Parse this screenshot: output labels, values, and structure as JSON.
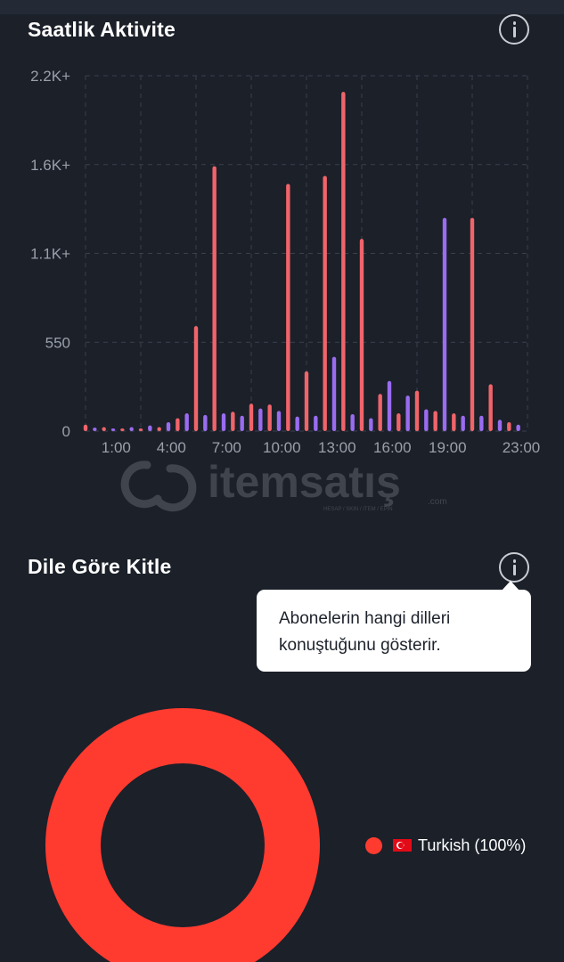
{
  "activity_section": {
    "title": "Saatlik Aktivite"
  },
  "language_section": {
    "title": "Dile Göre Kitle",
    "tooltip_text": "Abonelerin hangi dilleri konuştuğunu gösterir.",
    "legend_label": "Turkish (100%)"
  },
  "watermark": {
    "text": "itemsatış",
    "subtext": "HESAP / SKIN / ITEM / EPIN",
    "suffix": ".com"
  },
  "colors": {
    "red_series": "#f0646a",
    "purple_series": "#9a6cf0",
    "donut": "#ff3b30",
    "background": "#1b2029"
  },
  "chart_data": {
    "type": "bar",
    "y_tick_labels": [
      "0",
      "550",
      "1.1K+",
      "1.6K+",
      "2.2K+"
    ],
    "y_tick_values": [
      0,
      550,
      1100,
      1650,
      2200
    ],
    "ylim": [
      0,
      2200
    ],
    "x_tick_labels": [
      "1:00",
      "4:00",
      "7:00",
      "10:00",
      "13:00",
      "16:00",
      "19:00",
      "23:00"
    ],
    "x_tick_hours": [
      1,
      4,
      7,
      10,
      13,
      16,
      19,
      23
    ],
    "grid": true,
    "bars": [
      {
        "hour": 0,
        "sub": 0,
        "value": 40,
        "color": "red"
      },
      {
        "hour": 0,
        "sub": 1,
        "value": 22,
        "color": "purple"
      },
      {
        "hour": 1,
        "sub": 0,
        "value": 25,
        "color": "red"
      },
      {
        "hour": 1,
        "sub": 1,
        "value": 15,
        "color": "purple"
      },
      {
        "hour": 2,
        "sub": 0,
        "value": 15,
        "color": "red"
      },
      {
        "hour": 2,
        "sub": 1,
        "value": 25,
        "color": "purple"
      },
      {
        "hour": 3,
        "sub": 0,
        "value": 10,
        "color": "red"
      },
      {
        "hour": 3,
        "sub": 1,
        "value": 35,
        "color": "purple"
      },
      {
        "hour": 4,
        "sub": 0,
        "value": 25,
        "color": "red"
      },
      {
        "hour": 4,
        "sub": 1,
        "value": 55,
        "color": "purple"
      },
      {
        "hour": 5,
        "sub": 0,
        "value": 80,
        "color": "red"
      },
      {
        "hour": 5,
        "sub": 1,
        "value": 110,
        "color": "purple"
      },
      {
        "hour": 6,
        "sub": 0,
        "value": 650,
        "color": "red"
      },
      {
        "hour": 6,
        "sub": 1,
        "value": 100,
        "color": "purple"
      },
      {
        "hour": 7,
        "sub": 0,
        "value": 1640,
        "color": "red"
      },
      {
        "hour": 7,
        "sub": 1,
        "value": 110,
        "color": "purple"
      },
      {
        "hour": 8,
        "sub": 0,
        "value": 120,
        "color": "red"
      },
      {
        "hour": 8,
        "sub": 1,
        "value": 95,
        "color": "purple"
      },
      {
        "hour": 9,
        "sub": 0,
        "value": 170,
        "color": "red"
      },
      {
        "hour": 9,
        "sub": 1,
        "value": 140,
        "color": "purple"
      },
      {
        "hour": 10,
        "sub": 0,
        "value": 165,
        "color": "red"
      },
      {
        "hour": 10,
        "sub": 1,
        "value": 125,
        "color": "purple"
      },
      {
        "hour": 11,
        "sub": 0,
        "value": 1530,
        "color": "red"
      },
      {
        "hour": 11,
        "sub": 1,
        "value": 90,
        "color": "purple"
      },
      {
        "hour": 12,
        "sub": 0,
        "value": 370,
        "color": "red"
      },
      {
        "hour": 12,
        "sub": 1,
        "value": 95,
        "color": "purple"
      },
      {
        "hour": 13,
        "sub": 0,
        "value": 1580,
        "color": "red"
      },
      {
        "hour": 13,
        "sub": 1,
        "value": 460,
        "color": "purple"
      },
      {
        "hour": 14,
        "sub": 0,
        "value": 2100,
        "color": "red"
      },
      {
        "hour": 14,
        "sub": 1,
        "value": 105,
        "color": "purple"
      },
      {
        "hour": 15,
        "sub": 0,
        "value": 1190,
        "color": "red"
      },
      {
        "hour": 15,
        "sub": 1,
        "value": 80,
        "color": "purple"
      },
      {
        "hour": 16,
        "sub": 0,
        "value": 230,
        "color": "red"
      },
      {
        "hour": 16,
        "sub": 1,
        "value": 310,
        "color": "purple"
      },
      {
        "hour": 17,
        "sub": 0,
        "value": 110,
        "color": "red"
      },
      {
        "hour": 17,
        "sub": 1,
        "value": 220,
        "color": "purple"
      },
      {
        "hour": 18,
        "sub": 0,
        "value": 250,
        "color": "red"
      },
      {
        "hour": 18,
        "sub": 1,
        "value": 135,
        "color": "purple"
      },
      {
        "hour": 19,
        "sub": 0,
        "value": 125,
        "color": "red"
      },
      {
        "hour": 19,
        "sub": 1,
        "value": 1320,
        "color": "purple"
      },
      {
        "hour": 20,
        "sub": 0,
        "value": 110,
        "color": "red"
      },
      {
        "hour": 20,
        "sub": 1,
        "value": 95,
        "color": "purple"
      },
      {
        "hour": 21,
        "sub": 0,
        "value": 1320,
        "color": "red"
      },
      {
        "hour": 21,
        "sub": 1,
        "value": 95,
        "color": "purple"
      },
      {
        "hour": 22,
        "sub": 0,
        "value": 290,
        "color": "red"
      },
      {
        "hour": 22,
        "sub": 1,
        "value": 70,
        "color": "purple"
      },
      {
        "hour": 23,
        "sub": 0,
        "value": 55,
        "color": "red"
      },
      {
        "hour": 23,
        "sub": 1,
        "value": 40,
        "color": "purple"
      }
    ]
  },
  "donut_chart": {
    "type": "pie",
    "slices": [
      {
        "label": "Turkish",
        "value": 100,
        "color": "#ff3b30"
      }
    ]
  }
}
